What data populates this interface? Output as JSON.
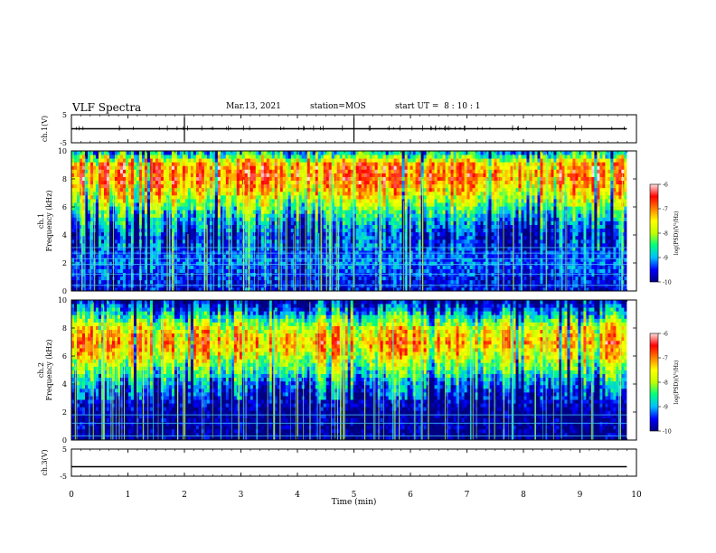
{
  "header": {
    "title": "VLF Spectra",
    "date": "Mar.13, 2021",
    "station": "station=MOS",
    "start_ut": "start UT =  8 : 10 : 1"
  },
  "colors": {
    "scale": [
      "#000080",
      "#0000ff",
      "#00c0ff",
      "#00ff80",
      "#c0ff00",
      "#ffff00",
      "#ff8000",
      "#ff0000",
      "#ffe0e0"
    ]
  },
  "chart_data": [
    {
      "type": "line",
      "panel": "ch1-voltage",
      "ylabel": "ch.1(V)",
      "ylim": [
        -5,
        5
      ],
      "y_ticks": [
        "5",
        "-5"
      ],
      "xlim": [
        0,
        10
      ],
      "series": [
        {
          "x": [
            0,
            9.83
          ],
          "y": [
            0,
            0
          ]
        }
      ]
    },
    {
      "type": "heatmap",
      "panel": "ch1-spectrogram",
      "ylabel": "ch.1\nFrequency (kHz)",
      "ylim": [
        0,
        10
      ],
      "y_ticks": [
        "0",
        "2",
        "4",
        "6",
        "8",
        "10"
      ],
      "xlim": [
        0,
        10
      ],
      "data_end_min": 9.83,
      "freq_profile_kHz": [
        0,
        1,
        2,
        3,
        4,
        5,
        6,
        7,
        8,
        9,
        10
      ],
      "level_profile_log_psd": [
        -9.6,
        -9.5,
        -9.2,
        -9.4,
        -9.5,
        -9.0,
        -8.3,
        -7.5,
        -6.9,
        -7.0,
        -9.0
      ],
      "tone_lines_kHz": [
        0.4,
        1.2,
        1.9,
        2.3,
        2.7,
        3.1
      ],
      "colorbar": {
        "label": "log(PSD)(V²/Hz)",
        "range": [
          -10,
          -6
        ],
        "ticks": [
          "-6",
          "-7",
          "-8",
          "-9",
          "-10"
        ]
      }
    },
    {
      "type": "heatmap",
      "panel": "ch2-spectrogram",
      "ylabel": "ch.2\nFrequency (kHz)",
      "ylim": [
        0,
        10
      ],
      "y_ticks": [
        "0",
        "2",
        "4",
        "6",
        "8",
        "10"
      ],
      "xlim": [
        0,
        10
      ],
      "data_end_min": 9.83,
      "freq_profile_kHz": [
        0,
        1,
        2,
        3,
        4,
        5,
        6,
        7,
        8,
        9,
        10
      ],
      "level_profile_log_psd": [
        -10.0,
        -9.9,
        -9.9,
        -9.6,
        -9.2,
        -8.4,
        -7.6,
        -7.1,
        -7.6,
        -8.8,
        -9.8
      ],
      "tone_lines_kHz": [
        0.3,
        1.2,
        1.8
      ],
      "colorbar": {
        "label": "log(PSD)(V²/Hz)",
        "range": [
          -10,
          -6
        ],
        "ticks": [
          "-6",
          "-7",
          "-8",
          "-9",
          "-10"
        ]
      }
    },
    {
      "type": "line",
      "panel": "ch3-voltage",
      "ylabel": "ch.3(V)",
      "ylim": [
        -5,
        5
      ],
      "y_ticks": [
        "5",
        "-5"
      ],
      "xlim": [
        0,
        10
      ],
      "series": [
        {
          "x": [
            0,
            9.83
          ],
          "y": [
            -1.5,
            -1.5
          ]
        }
      ]
    }
  ],
  "xaxis": {
    "label": "Time (min)",
    "ticks": [
      "0",
      "1",
      "2",
      "3",
      "4",
      "5",
      "6",
      "7",
      "8",
      "9",
      "10"
    ]
  }
}
